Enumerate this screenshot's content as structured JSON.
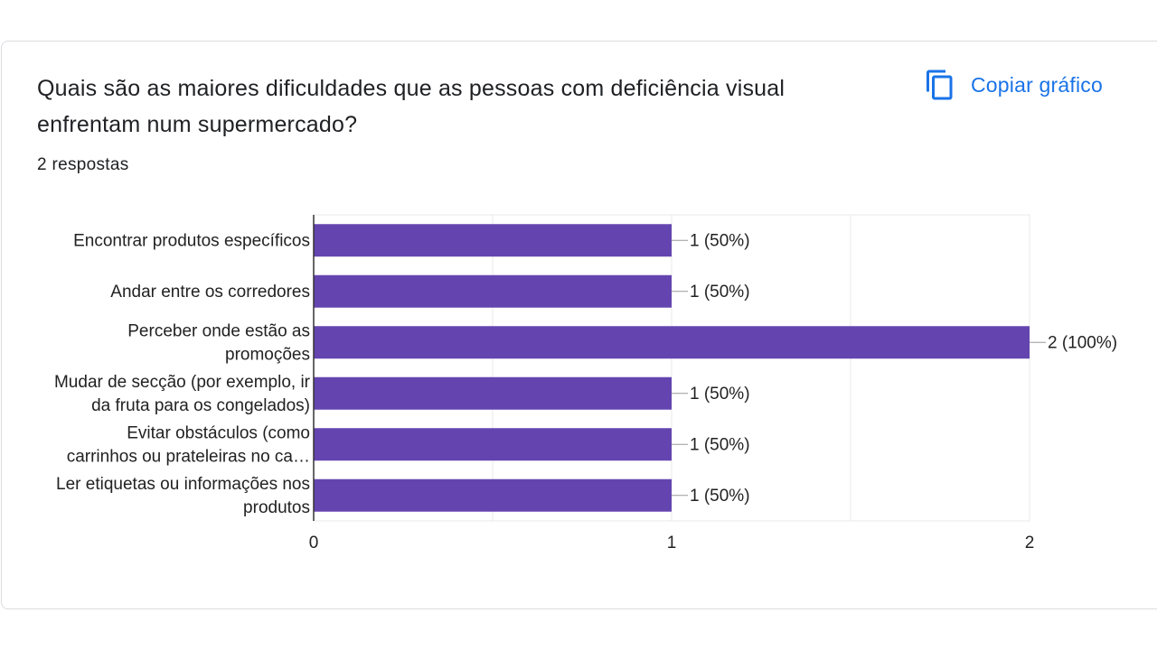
{
  "question": {
    "title": "Quais são as maiores dificuldades que as pessoas com deficiência visual enfrentam num supermercado?",
    "responses_label": "2 respostas"
  },
  "toolbar": {
    "copy_label": "Copiar gráfico",
    "copy_icon": "copy-icon"
  },
  "colors": {
    "bar": "#6445b0",
    "accent": "#1a73e8",
    "grid": "#e8e8e8",
    "axis": "#333333",
    "text": "#222222"
  },
  "chart_data": {
    "type": "bar",
    "orientation": "horizontal",
    "categories": [
      [
        "Encontrar produtos específicos"
      ],
      [
        "Andar entre os corredores"
      ],
      [
        "Perceber onde estão as",
        "promoções"
      ],
      [
        "Mudar de secção (por exemplo, ir",
        "da fruta para os congelados)"
      ],
      [
        "Evitar obstáculos (como",
        "carrinhos ou prateleiras no ca…"
      ],
      [
        "Ler etiquetas ou informações nos",
        "produtos"
      ]
    ],
    "values": [
      1,
      1,
      2,
      1,
      1,
      1
    ],
    "data_labels": [
      "1 (50%)",
      "1 (50%)",
      "2 (100%)",
      "1 (50%)",
      "1 (50%)",
      "1 (50%)"
    ],
    "xlim": [
      0,
      2
    ],
    "xticks": [
      "0",
      "1",
      "2"
    ],
    "grid": true,
    "legend": "none"
  }
}
